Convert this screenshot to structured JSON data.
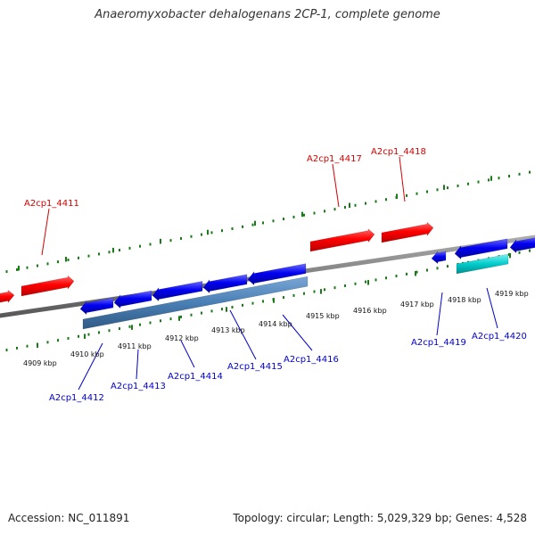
{
  "title": "Anaeromyxobacter dehalogenans 2CP-1, complete genome",
  "footer": {
    "accession": "Accession: NC_011891",
    "topology": "Topology: circular; Length: 5,029,329 bp; Genes: 4,528"
  },
  "colors": {
    "forward_gene": "#ff0000",
    "reverse_gene": "#0000ff",
    "reverse_cds": "#4a7fb5",
    "rna": "#00cccc",
    "ruler": "#1a7a1a",
    "backbone": "#808080",
    "forward_label": "#d40000",
    "reverse_label": "#0000cc"
  },
  "scale_labels": [
    "4909 kbp",
    "4910 kbp",
    "4911 kbp",
    "4912 kbp",
    "4913 kbp",
    "4914 kbp",
    "4915 kbp",
    "4916 kbp",
    "4917 kbp",
    "4918 kbp",
    "4919 kbp"
  ],
  "gene_labels": {
    "forward": [
      "A2cp1_4411",
      "A2cp1_4417",
      "A2cp1_4418"
    ],
    "reverse": [
      "A2cp1_4412",
      "A2cp1_4413",
      "A2cp1_4414",
      "A2cp1_4415",
      "A2cp1_4416",
      "A2cp1_4419",
      "A2cp1_4420"
    ]
  }
}
